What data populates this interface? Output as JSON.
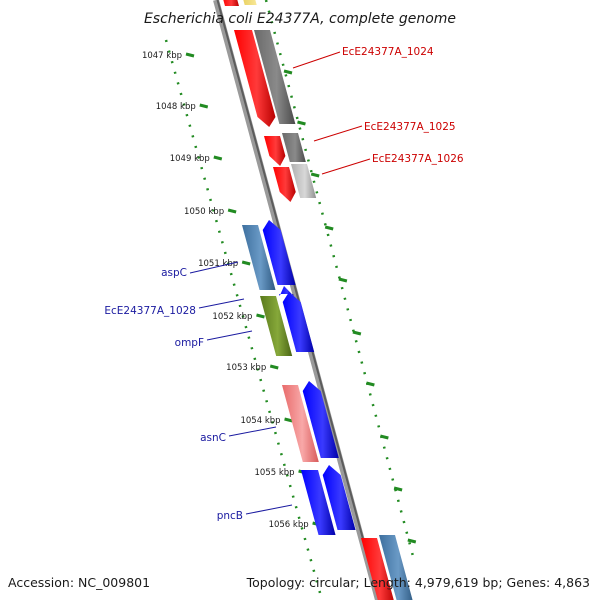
{
  "header": {
    "title": "Escherichia coli E24377A, complete genome"
  },
  "footer": {
    "accession": "Accession: NC_009801",
    "summary": "Topology: circular; Length: 4,979,619 bp; Genes: 4,863"
  },
  "ruler": {
    "ticks": [
      "1047 kbp",
      "1048 kbp",
      "1049 kbp",
      "1050 kbp",
      "1051 kbp",
      "1052 kbp",
      "1053 kbp",
      "1054 kbp",
      "1055 kbp",
      "1056 kbp"
    ]
  },
  "labels": {
    "forward": [
      "EcE24377A_1024",
      "EcE24377A_1025",
      "EcE24377A_1026"
    ],
    "reverse": [
      "aspC",
      "EcE24377A_1028",
      "ompF",
      "asnC",
      "pncB"
    ]
  },
  "colors": {
    "cds_red": "#ff0000",
    "cds_blue": "#0000ff",
    "gray": "#707070",
    "light_gray": "#bdbdbd",
    "steel_blue": "#4a7fb0",
    "olive": "#6b8e23",
    "salmon": "#f08080",
    "tick_green": "#228b22",
    "label_red": "#cc0000",
    "label_blue": "#1a1aa0"
  }
}
